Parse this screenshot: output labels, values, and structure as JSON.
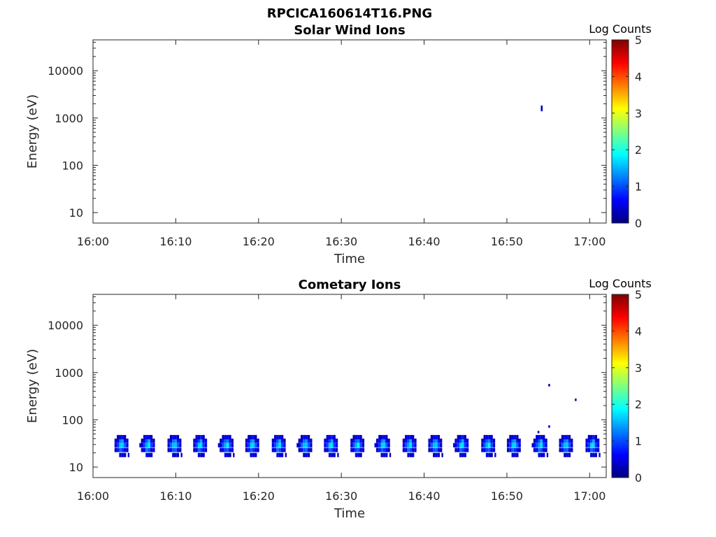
{
  "figure_title": "RPCICA160614T16.PNG",
  "chart_data": [
    {
      "type": "heatmap",
      "title": "Solar Wind Ions",
      "xlabel": "Time",
      "ylabel": "Energy (eV)",
      "x_ticks": [
        "16:00",
        "16:10",
        "16:20",
        "16:30",
        "16:40",
        "16:50",
        "17:00"
      ],
      "x_range_min": [
        0,
        62
      ],
      "y_ticks": [
        10,
        100,
        1000,
        10000
      ],
      "y_tick_labels": [
        "10",
        "100",
        "1000",
        "10000"
      ],
      "y_scale": "log",
      "y_range_eV": [
        6,
        45000
      ],
      "colorbar": {
        "label": "Log Counts",
        "range": [
          0,
          5
        ],
        "ticks": [
          "0",
          "1",
          "2",
          "3",
          "4",
          "5"
        ],
        "colormap": "jet"
      },
      "points": [
        {
          "t": 54.1,
          "e": 1700,
          "v": 0.3
        },
        {
          "t": 54.1,
          "e": 1500,
          "v": 0.3
        }
      ]
    },
    {
      "type": "heatmap",
      "title": "Cometary Ions",
      "xlabel": "Time",
      "ylabel": "Energy (eV)",
      "x_ticks": [
        "16:00",
        "16:10",
        "16:20",
        "16:30",
        "16:40",
        "16:50",
        "17:00"
      ],
      "x_range_min": [
        0,
        62
      ],
      "y_ticks": [
        10,
        100,
        1000,
        10000
      ],
      "y_tick_labels": [
        "10",
        "100",
        "1000",
        "10000"
      ],
      "y_scale": "log",
      "y_range_eV": [
        6,
        45000
      ],
      "colorbar": {
        "label": "Log Counts",
        "range": [
          0,
          5
        ],
        "ticks": [
          "0",
          "1",
          "2",
          "3",
          "4",
          "5"
        ],
        "colormap": "jet"
      },
      "burst_times_min": [
        3.3,
        6.5,
        9.7,
        12.8,
        16.0,
        19.1,
        22.3,
        25.5,
        28.6,
        31.8,
        34.9,
        38.1,
        41.2,
        44.4,
        47.6,
        50.7,
        53.9,
        57.0,
        60.2
      ],
      "burst_energy_eV": [
        18,
        23,
        29,
        36,
        43
      ],
      "isolated_points": [
        {
          "t": 55.0,
          "e": 540,
          "v": 0.2
        },
        {
          "t": 55.0,
          "e": 72,
          "v": 0.6
        },
        {
          "t": 58.2,
          "e": 265,
          "v": 0.3
        },
        {
          "t": 53.7,
          "e": 55,
          "v": 0.4
        }
      ]
    }
  ]
}
